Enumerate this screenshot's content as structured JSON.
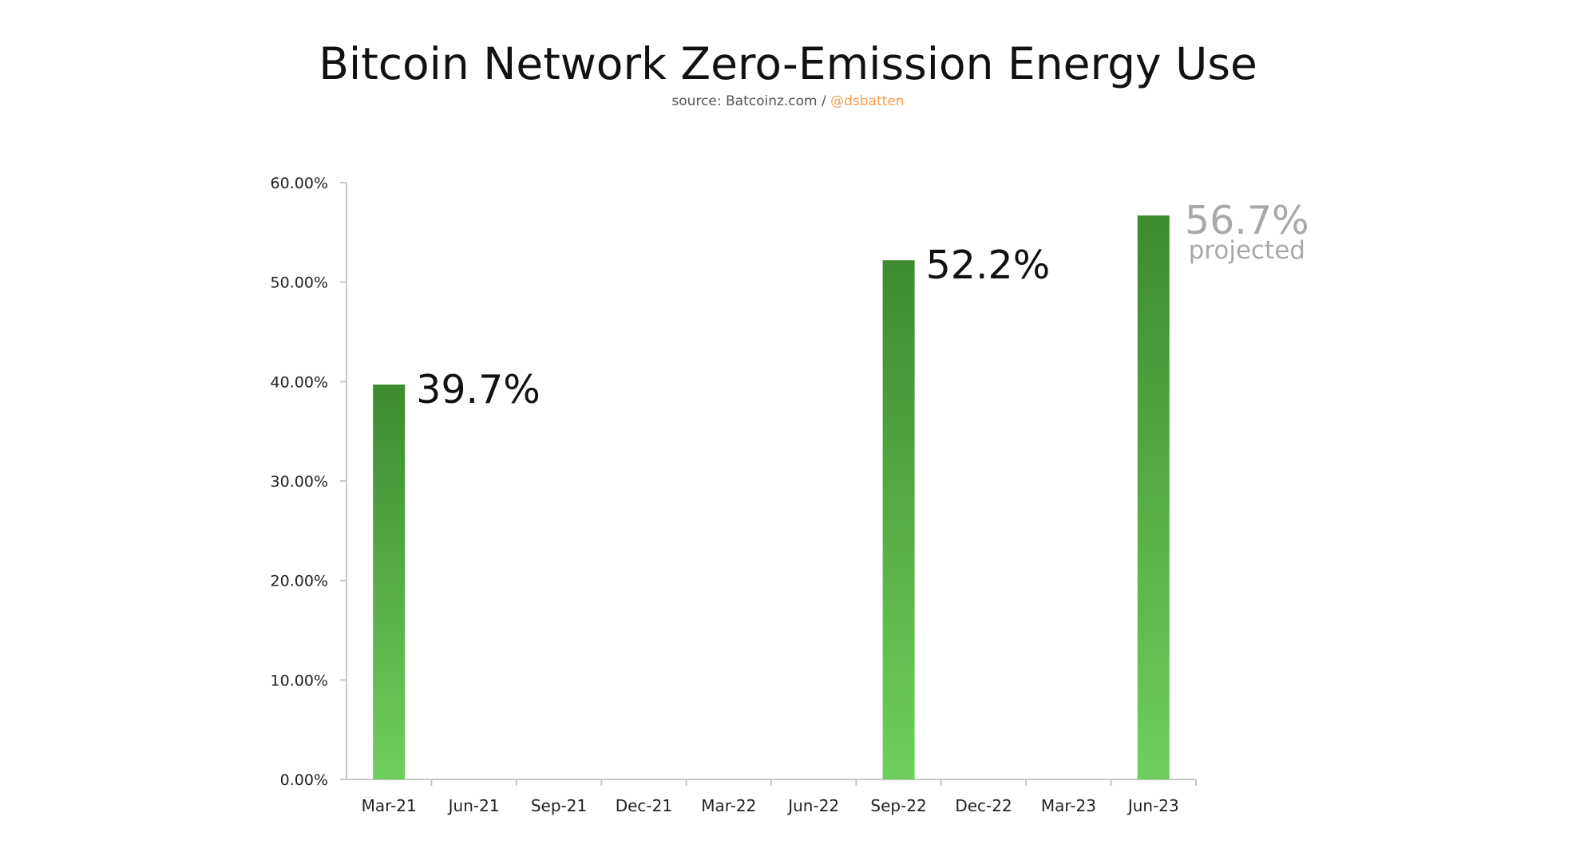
{
  "chart_data": {
    "type": "bar",
    "title": "Bitcoin Network Zero-Emission Energy Use",
    "source_text": "source: Batcoinz.com / ",
    "source_handle": "@dsbatten",
    "xlabel": "",
    "ylabel": "",
    "categories": [
      "Mar-21",
      "Jun-21",
      "Sep-21",
      "Dec-21",
      "Mar-22",
      "Jun-22",
      "Sep-22",
      "Dec-22",
      "Mar-23",
      "Jun-23"
    ],
    "values": [
      39.7,
      null,
      null,
      null,
      null,
      null,
      52.2,
      null,
      null,
      56.7
    ],
    "ylim": [
      0,
      60
    ],
    "yticks": [
      "0.00%",
      "10.00%",
      "20.00%",
      "30.00%",
      "40.00%",
      "50.00%",
      "60.00%"
    ],
    "grid": false,
    "legend": "none",
    "data_labels": [
      {
        "category": "Mar-21",
        "text": "39.7%",
        "note": "",
        "color": "#111111"
      },
      {
        "category": "Sep-22",
        "text": "52.2%",
        "note": "",
        "color": "#111111"
      },
      {
        "category": "Jun-23",
        "text": "56.7%",
        "note": "projected",
        "color": "#a8a8a8"
      }
    ],
    "colors": {
      "bar_top": "#3d8b2e",
      "bar_bottom": "#6fcf5c",
      "axis": "#c8c8c8",
      "projected_label": "#a8a8a8"
    }
  }
}
